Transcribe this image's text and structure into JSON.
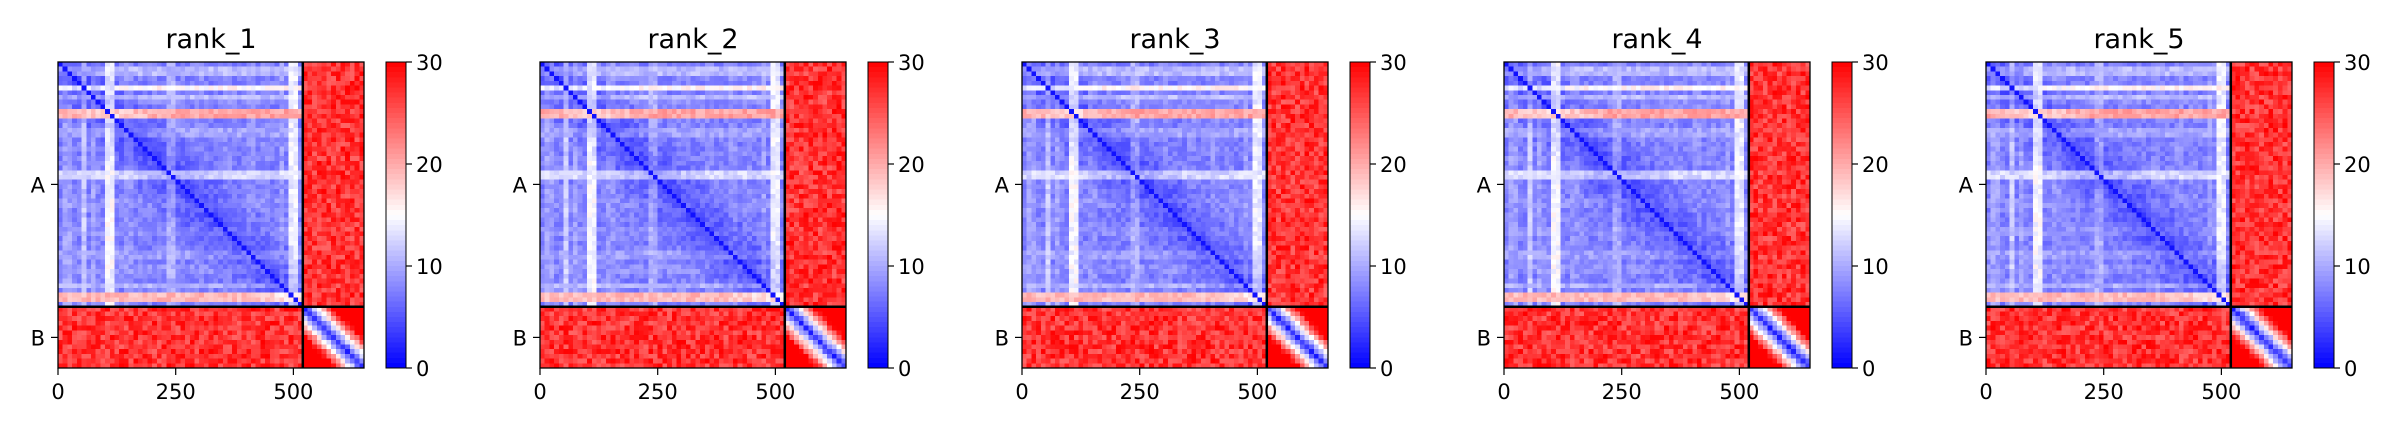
{
  "chart_data": {
    "type": "heatmap",
    "colorbar": {
      "colormap": "bwr",
      "range": [
        0,
        30
      ],
      "ticks": [
        "0",
        "10",
        "20",
        "30"
      ]
    },
    "chains": [
      {
        "name": "A",
        "length": 520
      },
      {
        "name": "B",
        "length": 130
      }
    ],
    "x_ticks": [
      "0",
      "250",
      "500"
    ],
    "x_tick_values": [
      0,
      250,
      500
    ],
    "total_length": 650,
    "panels": [
      {
        "title": "rank_1"
      },
      {
        "title": "rank_2"
      },
      {
        "title": "rank_3"
      },
      {
        "title": "rank_4"
      },
      {
        "title": "rank_5"
      }
    ],
    "pattern": {
      "within_chain_A": "mostly low (blue) with diagonal minimum and several high-error (red) stripes at residues ~110, ~250, ~500",
      "inter_chain": "high (red)",
      "within_chain_B": "red with blue diagonal"
    }
  }
}
